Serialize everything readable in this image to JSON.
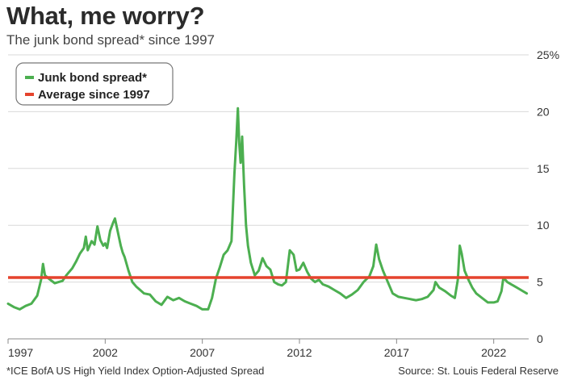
{
  "header": {
    "title": "What, me worry?",
    "subtitle": "The junk bond spread* since 1997"
  },
  "footer": {
    "footnote": "*ICE BofA US High Yield Index Option-Adjusted Spread",
    "source": "Source: St. Louis Federal Reserve"
  },
  "colors": {
    "spread_line": "#4caf50",
    "average_line": "#e5432d",
    "grid": "#d9d9d9",
    "axis": "#888888"
  },
  "chart_data": {
    "type": "line",
    "title": "The junk bond spread* since 1997",
    "xlabel": "",
    "ylabel": "",
    "xlim": [
      1997.0,
      2023.8
    ],
    "ylim": [
      0,
      25
    ],
    "y_ticks": [
      0,
      5,
      10,
      15,
      20,
      25
    ],
    "y_tick_labels": [
      "0",
      "5",
      "10",
      "15",
      "20",
      "25%"
    ],
    "x_ticks": [
      1997,
      2002,
      2007,
      2012,
      2017,
      2022
    ],
    "x_tick_labels": [
      "1997",
      "2002",
      "2007",
      "2012",
      "2017",
      "2022"
    ],
    "grid": true,
    "legend_position": "top-left",
    "series": [
      {
        "name": "Junk bond spread*",
        "x": [
          1997.0,
          1997.3,
          1997.6,
          1997.9,
          1998.2,
          1998.5,
          1998.7,
          1998.8,
          1998.9,
          1999.1,
          1999.4,
          1999.6,
          1999.8,
          2000.0,
          2000.3,
          2000.5,
          2000.7,
          2000.9,
          2001.0,
          2001.1,
          2001.3,
          2001.45,
          2001.6,
          2001.75,
          2001.9,
          2002.0,
          2002.1,
          2002.25,
          2002.4,
          2002.5,
          2002.6,
          2002.7,
          2002.8,
          2002.9,
          2003.0,
          2003.2,
          2003.4,
          2003.6,
          2003.8,
          2004.0,
          2004.3,
          2004.6,
          2004.9,
          2005.2,
          2005.5,
          2005.8,
          2006.1,
          2006.4,
          2006.7,
          2007.0,
          2007.3,
          2007.5,
          2007.7,
          2007.9,
          2008.1,
          2008.3,
          2008.5,
          2008.65,
          2008.75,
          2008.83,
          2008.9,
          2008.97,
          2009.05,
          2009.15,
          2009.25,
          2009.35,
          2009.5,
          2009.7,
          2009.9,
          2010.1,
          2010.3,
          2010.5,
          2010.7,
          2010.9,
          2011.1,
          2011.3,
          2011.5,
          2011.7,
          2011.85,
          2012.0,
          2012.2,
          2012.4,
          2012.6,
          2012.8,
          2013.0,
          2013.2,
          2013.5,
          2013.8,
          2014.1,
          2014.4,
          2014.7,
          2015.0,
          2015.3,
          2015.6,
          2015.8,
          2015.95,
          2016.1,
          2016.3,
          2016.5,
          2016.8,
          2017.1,
          2017.4,
          2017.7,
          2018.0,
          2018.3,
          2018.6,
          2018.9,
          2019.0,
          2019.2,
          2019.5,
          2019.8,
          2020.0,
          2020.15,
          2020.25,
          2020.35,
          2020.5,
          2020.7,
          2020.9,
          2021.1,
          2021.4,
          2021.7,
          2022.0,
          2022.2,
          2022.4,
          2022.5,
          2022.7,
          2022.9,
          2023.1,
          2023.3,
          2023.5,
          2023.7
        ],
        "values": [
          3.1,
          2.8,
          2.6,
          2.9,
          3.1,
          3.8,
          5.2,
          6.6,
          5.6,
          5.3,
          4.9,
          5.0,
          5.1,
          5.6,
          6.2,
          6.8,
          7.5,
          8.0,
          9.0,
          7.8,
          8.6,
          8.3,
          9.9,
          8.7,
          8.2,
          8.4,
          8.0,
          9.5,
          10.2,
          10.6,
          9.8,
          9.0,
          8.2,
          7.6,
          7.2,
          6.0,
          5.0,
          4.6,
          4.3,
          4.0,
          3.9,
          3.3,
          3.0,
          3.7,
          3.4,
          3.6,
          3.3,
          3.1,
          2.9,
          2.6,
          2.6,
          3.6,
          5.3,
          6.3,
          7.4,
          7.8,
          8.6,
          14.5,
          17.5,
          20.3,
          17.2,
          15.5,
          17.8,
          13.5,
          10.0,
          8.2,
          6.7,
          5.6,
          6.0,
          7.1,
          6.4,
          6.1,
          5.0,
          4.8,
          4.7,
          5.0,
          7.8,
          7.4,
          6.0,
          6.1,
          6.7,
          5.9,
          5.3,
          5.0,
          5.2,
          4.8,
          4.6,
          4.3,
          4.0,
          3.6,
          3.9,
          4.3,
          5.0,
          5.5,
          6.4,
          8.3,
          7.0,
          6.0,
          5.2,
          4.0,
          3.7,
          3.6,
          3.5,
          3.4,
          3.5,
          3.7,
          4.3,
          5.0,
          4.5,
          4.2,
          3.8,
          3.6,
          5.2,
          8.2,
          7.5,
          6.0,
          5.2,
          4.5,
          4.0,
          3.6,
          3.2,
          3.2,
          3.3,
          4.2,
          5.4,
          5.0,
          4.8,
          4.6,
          4.4,
          4.2,
          4.0
        ]
      },
      {
        "name": "Average since 1997",
        "x": [
          1997.0,
          2023.8
        ],
        "values": [
          5.4,
          5.4
        ]
      }
    ]
  }
}
